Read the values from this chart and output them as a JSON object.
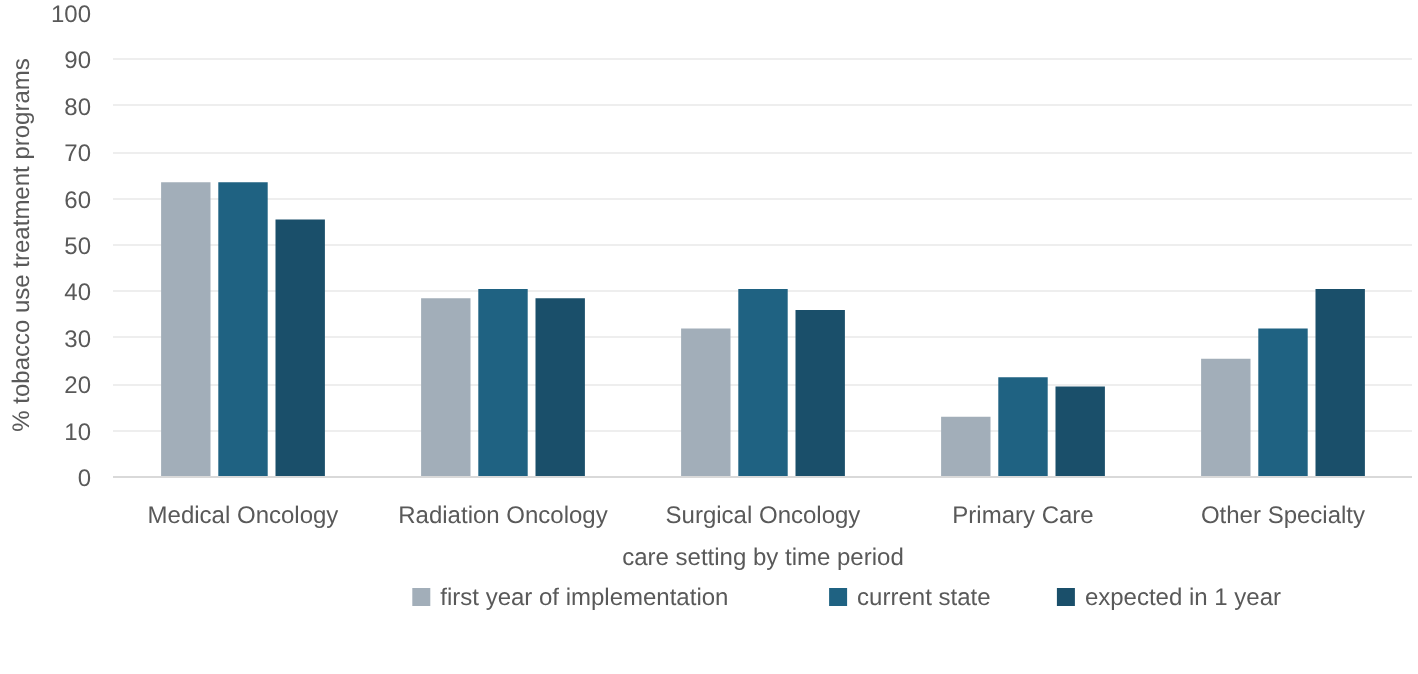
{
  "chart_data": {
    "type": "bar",
    "xlabel": "care setting by time period",
    "ylabel": "% tobacco use treatment programs",
    "categories": [
      "Medical Oncology",
      "Radiation Oncology",
      "Surgical Oncology",
      "Primary Care",
      "Other Specialty"
    ],
    "series": [
      {
        "name": "first year of implementation",
        "color": "#a2aeb9",
        "values": [
          63.5,
          38.5,
          32,
          13,
          25.5
        ]
      },
      {
        "name": "current state",
        "color": "#1f6282",
        "values": [
          63.5,
          40.5,
          40.5,
          21.5,
          32
        ]
      },
      {
        "name": "expected in 1 year",
        "color": "#1a4f6a",
        "values": [
          55.5,
          38.5,
          36,
          19.5,
          40.5
        ]
      }
    ],
    "ylim": [
      0,
      100
    ],
    "yticks": [
      0,
      10,
      20,
      30,
      40,
      50,
      60,
      70,
      80,
      90,
      100
    ],
    "grid": "y",
    "legend": "bottom"
  }
}
